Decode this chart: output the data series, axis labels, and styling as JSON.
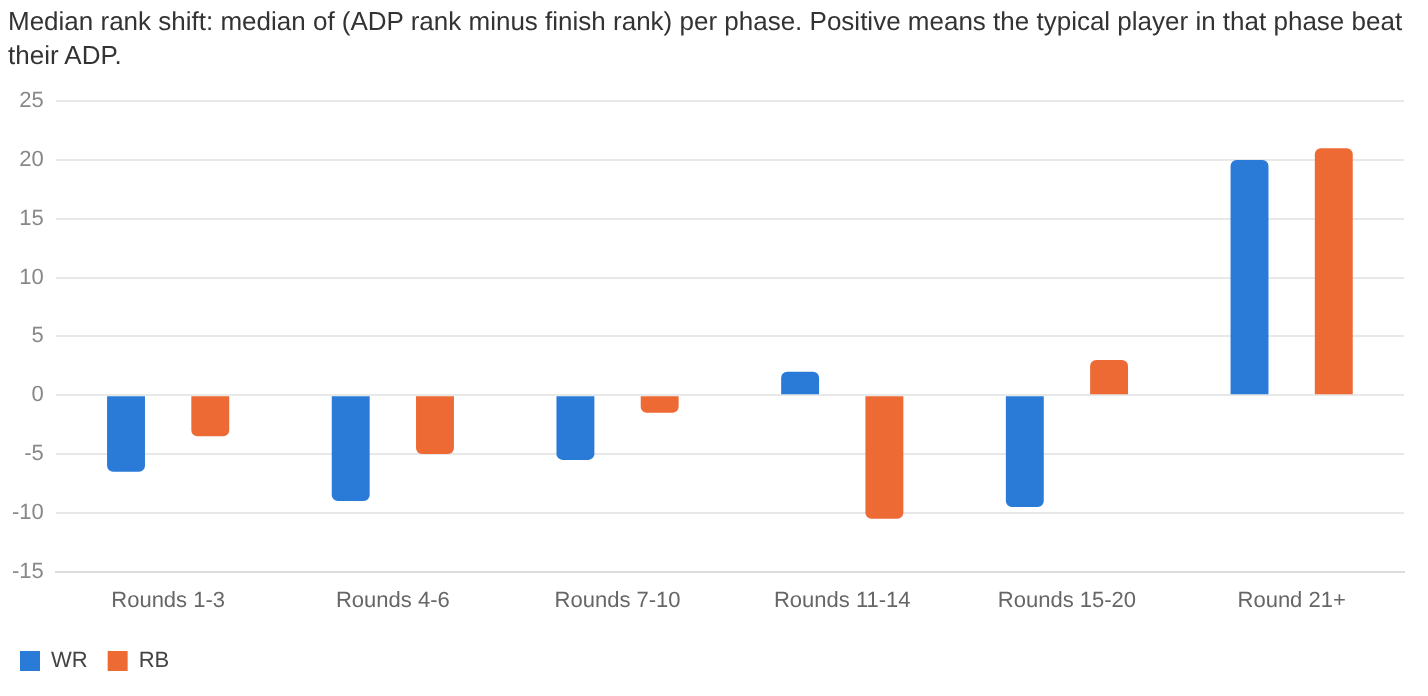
{
  "chart_data": {
    "type": "bar",
    "title": "Median rank shift: median of (ADP rank minus finish rank) per phase. Positive means the typical player in that phase beat their ADP.",
    "categories": [
      "Rounds 1-3",
      "Rounds 4-6",
      "Rounds 7-10",
      "Rounds 11-14",
      "Rounds 15-20",
      "Round 21+"
    ],
    "series": [
      {
        "name": "WR",
        "color": "#2a7bd8",
        "values": [
          -6.5,
          -9,
          -5.5,
          2,
          -9.5,
          20
        ]
      },
      {
        "name": "RB",
        "color": "#ed6a35",
        "values": [
          -3.5,
          -5,
          -1.5,
          -10.5,
          3,
          21
        ]
      }
    ],
    "ylim": [
      -15,
      25
    ],
    "yticks": [
      -15,
      -10,
      -5,
      0,
      5,
      10,
      15,
      20,
      25
    ],
    "grid": "y",
    "legend": "bottom left"
  }
}
